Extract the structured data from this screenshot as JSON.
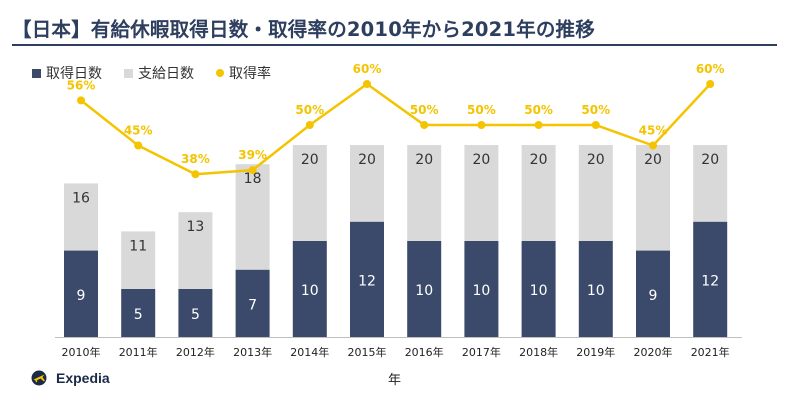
{
  "title": "【日本】有給休暇取得日数・取得率の2010年から2021年の推移",
  "brand": {
    "name": "Expedia",
    "logo": "expedia-plane-logo"
  },
  "colors": {
    "taken": "#3b4a6b",
    "granted": "#d9d9d9",
    "rate": "#f4c400",
    "title": "#2e3e5e"
  },
  "chart_data": {
    "type": "bar",
    "stacked": true,
    "categories": [
      "2010年",
      "2011年",
      "2012年",
      "2013年",
      "2014年",
      "2015年",
      "2016年",
      "2017年",
      "2018年",
      "2019年",
      "2020年",
      "2021年"
    ],
    "xlabel": "年",
    "legend_position": "top-left",
    "grid": false,
    "series": [
      {
        "name": "取得日数",
        "kind": "bar",
        "values": [
          9,
          5,
          5,
          7,
          10,
          12,
          10,
          10,
          10,
          10,
          9,
          12
        ]
      },
      {
        "name": "支給日数",
        "kind": "bar-total",
        "values": [
          16,
          11,
          13,
          18,
          20,
          20,
          20,
          20,
          20,
          20,
          20,
          20
        ]
      },
      {
        "name": "取得率",
        "kind": "line",
        "axis": "secondary",
        "values": [
          56,
          45,
          38,
          39,
          50,
          60,
          50,
          50,
          50,
          50,
          45,
          60
        ],
        "labels": [
          "56%",
          "45%",
          "38%",
          "39%",
          "50%",
          "60%",
          "50%",
          "50%",
          "50%",
          "50%",
          "45%",
          "60%"
        ]
      }
    ]
  }
}
